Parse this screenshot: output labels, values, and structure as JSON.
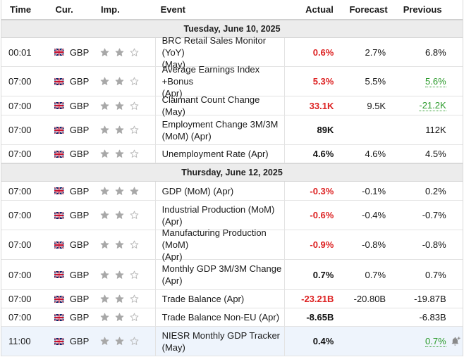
{
  "header": {
    "time": "Time",
    "currency": "Cur.",
    "importance": "Imp.",
    "event": "Event",
    "actual": "Actual",
    "forecast": "Forecast",
    "previous": "Previous"
  },
  "colors": {
    "negative": "#dd2222",
    "positive": "#2a9a2a",
    "star_filled": "#a8a8a8",
    "date_bg": "#ececec"
  },
  "groups": [
    {
      "date": "Tuesday, June 10, 2025",
      "rows": [
        {
          "time": "00:01",
          "cur": "GBP",
          "stars": 2,
          "line1": "BRC Retail Sales Monitor (YoY)",
          "line2": "(May)",
          "actual": "0.6%",
          "actual_color": "red",
          "forecast": "2.7%",
          "previous": "6.8%",
          "prev_color": "black"
        },
        {
          "time": "07:00",
          "cur": "GBP",
          "stars": 2,
          "line1": "Average Earnings Index +Bonus",
          "line2": "(Apr)",
          "actual": "5.3%",
          "actual_color": "red",
          "forecast": "5.5%",
          "previous": "5.6%",
          "prev_color": "green"
        },
        {
          "time": "07:00",
          "cur": "GBP",
          "stars": 2,
          "line1": "Claimant Count Change (May)",
          "line2": "",
          "actual": "33.1K",
          "actual_color": "red",
          "forecast": "9.5K",
          "previous": "-21.2K",
          "prev_color": "green"
        },
        {
          "time": "07:00",
          "cur": "GBP",
          "stars": 2,
          "line1": "Employment Change 3M/3M",
          "line2": "(MoM) (Apr)",
          "actual": "89K",
          "actual_color": "black",
          "forecast": "",
          "previous": "112K",
          "prev_color": "black"
        },
        {
          "time": "07:00",
          "cur": "GBP",
          "stars": 2,
          "line1": "Unemployment Rate (Apr)",
          "line2": "",
          "actual": "4.6%",
          "actual_color": "black",
          "forecast": "4.6%",
          "previous": "4.5%",
          "prev_color": "black"
        }
      ]
    },
    {
      "date": "Thursday, June 12, 2025",
      "rows": [
        {
          "time": "07:00",
          "cur": "GBP",
          "stars": 3,
          "line1": "GDP (MoM) (Apr)",
          "line2": "",
          "actual": "-0.3%",
          "actual_color": "red",
          "forecast": "-0.1%",
          "previous": "0.2%",
          "prev_color": "black"
        },
        {
          "time": "07:00",
          "cur": "GBP",
          "stars": 2,
          "line1": "Industrial Production (MoM)",
          "line2": "(Apr)",
          "actual": "-0.6%",
          "actual_color": "red",
          "forecast": "-0.4%",
          "previous": "-0.7%",
          "prev_color": "black"
        },
        {
          "time": "07:00",
          "cur": "GBP",
          "stars": 2,
          "line1": "Manufacturing Production (MoM)",
          "line2": "(Apr)",
          "actual": "-0.9%",
          "actual_color": "red",
          "forecast": "-0.8%",
          "previous": "-0.8%",
          "prev_color": "black"
        },
        {
          "time": "07:00",
          "cur": "GBP",
          "stars": 2,
          "line1": "Monthly GDP 3M/3M Change",
          "line2": "(Apr)",
          "actual": "0.7%",
          "actual_color": "black",
          "forecast": "0.7%",
          "previous": "0.7%",
          "prev_color": "black"
        },
        {
          "time": "07:00",
          "cur": "GBP",
          "stars": 2,
          "line1": "Trade Balance (Apr)",
          "line2": "",
          "actual": "-23.21B",
          "actual_color": "red",
          "forecast": "-20.80B",
          "previous": "-19.87B",
          "prev_color": "black"
        },
        {
          "time": "07:00",
          "cur": "GBP",
          "stars": 2,
          "line1": "Trade Balance Non-EU (Apr)",
          "line2": "",
          "actual": "-8.65B",
          "actual_color": "black",
          "forecast": "",
          "previous": "-6.83B",
          "prev_color": "black"
        },
        {
          "time": "11:00",
          "cur": "GBP",
          "stars": 2,
          "line1": "NIESR Monthly GDP Tracker",
          "line2": "(May)",
          "actual": "0.4%",
          "actual_color": "black",
          "forecast": "",
          "previous": "0.7%",
          "prev_color": "green",
          "alert_icon": "bell-plus-icon",
          "highlight": true
        }
      ]
    }
  ]
}
